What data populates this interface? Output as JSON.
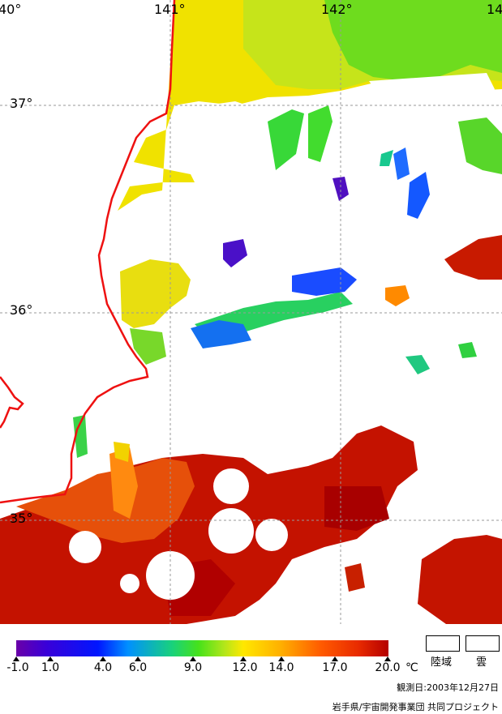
{
  "map": {
    "lon_labels": [
      "40°",
      "141°",
      "142°",
      "14"
    ],
    "lat_labels": [
      "37°",
      "36°",
      "35°"
    ],
    "colors": {
      "coast": "#ee1111",
      "grid": "#9a9a9a",
      "deep_red": "#b40000",
      "red": "#e03000",
      "orange": "#ff7a00",
      "yellow": "#f2e600",
      "lime": "#a6e61e",
      "green": "#3fdc28",
      "cyan_green": "#16cc8a",
      "blue": "#1450ff",
      "purple": "#4a10c8"
    }
  },
  "colorbar": {
    "tick_values": [
      "-1.0",
      "1.0",
      "4.0",
      "6.0",
      "9.0",
      "12.0",
      "14.0",
      "17.0",
      "20.0"
    ],
    "unit": "℃"
  },
  "legend": {
    "land_label": "陸域",
    "cloud_label": "雲"
  },
  "footer": {
    "date": "観測日:2003年12月27日",
    "credit": "岩手県/宇宙開発事業団 共同プロジェクト"
  }
}
